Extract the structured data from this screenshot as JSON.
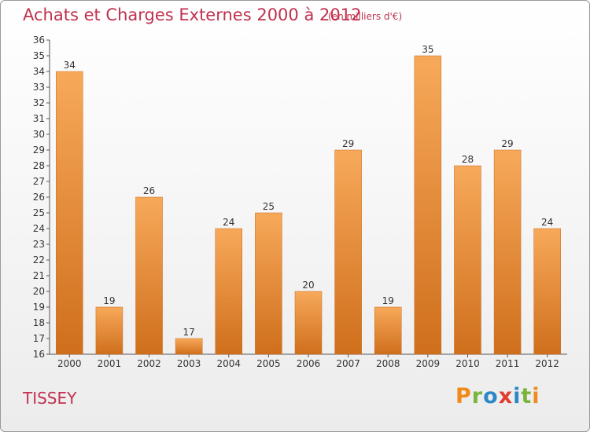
{
  "header": {
    "title": "Achats et Charges Externes 2000 à 2012",
    "unit": "(en milliers d'€)"
  },
  "footer": {
    "commune": "TISSEY",
    "logo": [
      "P",
      "r",
      "o",
      "x",
      "i",
      "t",
      "i"
    ]
  },
  "colors": {
    "title": "#c0314f",
    "bar_top": "#f7a95a",
    "bar_bottom": "#cf6f1c",
    "logo": [
      "#f08a1c",
      "#7ab43a",
      "#2e88c8",
      "#e23b2f",
      "#2e88c8",
      "#7ab43a",
      "#f08a1c"
    ]
  },
  "chart_data": {
    "type": "bar",
    "title": "Achats et Charges Externes 2000 à 2012",
    "subtitle": "(en milliers d'€)",
    "categories": [
      "2000",
      "2001",
      "2002",
      "2003",
      "2004",
      "2005",
      "2006",
      "2007",
      "2008",
      "2009",
      "2010",
      "2011",
      "2012"
    ],
    "values": [
      34,
      19,
      26,
      17,
      24,
      25,
      20,
      29,
      19,
      35,
      28,
      29,
      24
    ],
    "ylim": [
      16,
      36
    ],
    "yticks": [
      16,
      17,
      18,
      19,
      20,
      21,
      22,
      23,
      24,
      25,
      26,
      27,
      28,
      29,
      30,
      31,
      32,
      33,
      34,
      35,
      36
    ],
    "grid": false,
    "legend": "none"
  }
}
